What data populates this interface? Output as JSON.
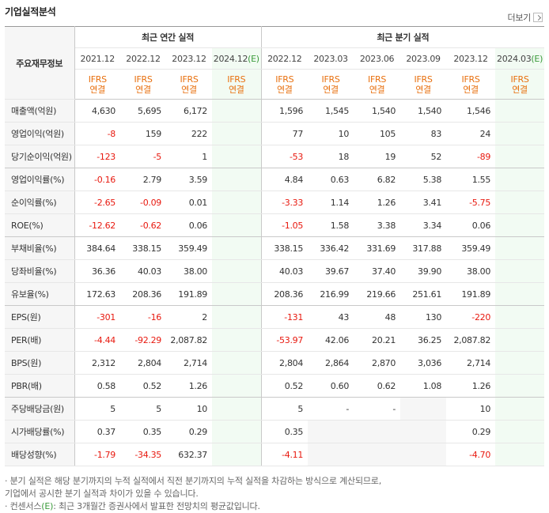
{
  "header": {
    "title": "기업실적분석",
    "more_label": "더보기"
  },
  "table": {
    "row_header_label": "주요재무정보",
    "annual_group_label": "최근 연간 실적",
    "quarter_group_label": "최근 분기 실적",
    "annual_periods": [
      "2021.12",
      "2022.12",
      "2023.12",
      "2024.12"
    ],
    "annual_estimate_suffix": "(E)",
    "quarter_periods": [
      "2022.12",
      "2023.03",
      "2023.06",
      "2023.09",
      "2023.12",
      "2024.03"
    ],
    "quarter_estimate_suffix": "(E)",
    "ifrs_line1": "IFRS",
    "ifrs_line2": "연결",
    "rows": [
      {
        "label": "매출액(억원)",
        "annual": [
          "4,630",
          "5,695",
          "6,172",
          ""
        ],
        "quarter": [
          "1,596",
          "1,545",
          "1,540",
          "1,540",
          "1,546",
          ""
        ]
      },
      {
        "label": "영업이익(억원)",
        "annual": [
          "-8",
          "159",
          "222",
          ""
        ],
        "quarter": [
          "77",
          "10",
          "105",
          "83",
          "24",
          ""
        ]
      },
      {
        "label": "당기순이익(억원)",
        "annual": [
          "-123",
          "-5",
          "1",
          ""
        ],
        "quarter": [
          "-53",
          "18",
          "19",
          "52",
          "-89",
          ""
        ]
      },
      {
        "label": "영업이익률(%)",
        "annual": [
          "-0.16",
          "2.79",
          "3.59",
          ""
        ],
        "quarter": [
          "4.84",
          "0.63",
          "6.82",
          "5.38",
          "1.55",
          ""
        ]
      },
      {
        "label": "순이익률(%)",
        "annual": [
          "-2.65",
          "-0.09",
          "0.01",
          ""
        ],
        "quarter": [
          "-3.33",
          "1.14",
          "1.26",
          "3.41",
          "-5.75",
          ""
        ]
      },
      {
        "label": "ROE(%)",
        "annual": [
          "-12.62",
          "-0.62",
          "0.06",
          ""
        ],
        "quarter": [
          "-1.05",
          "1.58",
          "3.38",
          "3.34",
          "0.06",
          ""
        ]
      },
      {
        "label": "부채비율(%)",
        "annual": [
          "384.64",
          "338.15",
          "359.49",
          ""
        ],
        "quarter": [
          "338.15",
          "336.42",
          "331.69",
          "317.88",
          "359.49",
          ""
        ]
      },
      {
        "label": "당좌비율(%)",
        "annual": [
          "36.36",
          "40.03",
          "38.00",
          ""
        ],
        "quarter": [
          "40.03",
          "39.67",
          "37.40",
          "39.90",
          "38.00",
          ""
        ]
      },
      {
        "label": "유보율(%)",
        "annual": [
          "172.63",
          "208.36",
          "191.89",
          ""
        ],
        "quarter": [
          "208.36",
          "216.99",
          "219.66",
          "251.61",
          "191.89",
          ""
        ]
      },
      {
        "label": "EPS(원)",
        "annual": [
          "-301",
          "-16",
          "2",
          ""
        ],
        "quarter": [
          "-131",
          "43",
          "48",
          "130",
          "-220",
          ""
        ]
      },
      {
        "label": "PER(배)",
        "annual": [
          "-4.44",
          "-92.29",
          "2,087.82",
          ""
        ],
        "quarter": [
          "-53.97",
          "42.06",
          "20.21",
          "36.25",
          "2,087.82",
          ""
        ]
      },
      {
        "label": "BPS(원)",
        "annual": [
          "2,312",
          "2,804",
          "2,714",
          ""
        ],
        "quarter": [
          "2,804",
          "2,864",
          "2,870",
          "3,036",
          "2,714",
          ""
        ]
      },
      {
        "label": "PBR(배)",
        "annual": [
          "0.58",
          "0.52",
          "1.26",
          ""
        ],
        "quarter": [
          "0.52",
          "0.60",
          "0.62",
          "1.08",
          "1.26",
          ""
        ]
      },
      {
        "label": "주당배당금(원)",
        "annual": [
          "5",
          "5",
          "10",
          ""
        ],
        "quarter": [
          "5",
          "-",
          "-",
          "",
          "10",
          ""
        ]
      },
      {
        "label": "시가배당률(%)",
        "annual": [
          "0.37",
          "0.35",
          "0.29",
          ""
        ],
        "quarter": [
          "0.35",
          "",
          "",
          "",
          "0.29",
          ""
        ]
      },
      {
        "label": "배당성향(%)",
        "annual": [
          "-1.79",
          "-34.35",
          "632.37",
          ""
        ],
        "quarter": [
          "-4.11",
          "",
          "",
          "",
          "-4.70",
          ""
        ]
      }
    ]
  },
  "notes": {
    "line1": "· 분기 실적은 해당 분기까지의 누적 실적에서 직전 분기까지의 누적 실적을 차감하는 방식으로 계산되므로,",
    "line2": "  기업에서 공시한 분기 실적과 차이가 있을 수 있습니다.",
    "line3_prefix": "· 컨센서스",
    "line3_e": "(E)",
    "line3_suffix": ": 최근 3개월간 증권사에서 발표한 전망치의 평균값입니다."
  },
  "colors": {
    "ifrs_orange": "#e8700f",
    "negative_red": "#e8190f",
    "estimate_green": "#3a9a3a",
    "estimate_bg": "#f2fbf3",
    "gray_cell": "#f6f6f6"
  }
}
